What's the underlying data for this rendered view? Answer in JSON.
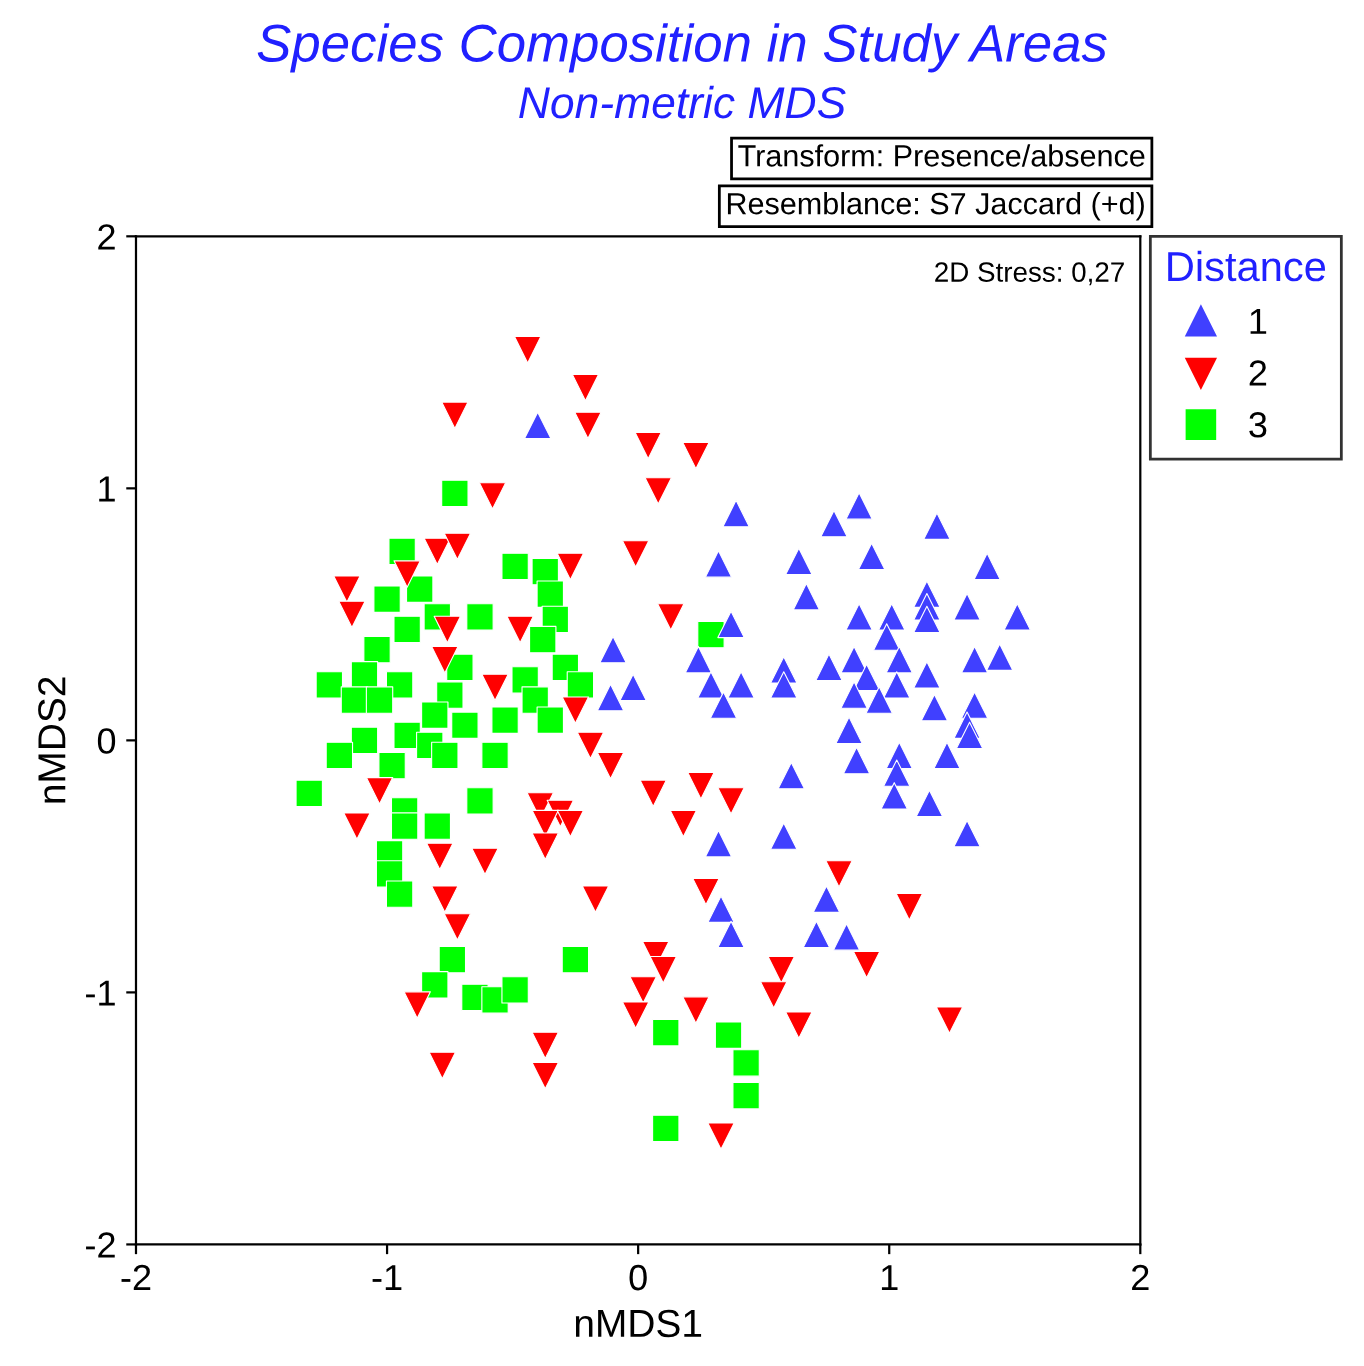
{
  "chart_data": {
    "type": "scatter",
    "title": "Species Composition in Study Areas",
    "subtitle": "Non-metric MDS",
    "xlabel": "nMDS1",
    "ylabel": "nMDS2",
    "legend_title": "Distance",
    "legend": "top right",
    "annotations": [
      "Transform: Presence/absence",
      "Resemblance: S7 Jaccard (+d)",
      "2D Stress: 0,27"
    ],
    "xlim": [
      -2,
      2
    ],
    "ylim": [
      -2,
      2
    ],
    "xticks": [
      -2,
      -1,
      0,
      1,
      2
    ],
    "yticks": [
      -2,
      -1,
      0,
      1,
      2
    ],
    "grid": false,
    "series": [
      {
        "name": "1",
        "color": "#4040ff",
        "marker": "triangle",
        "x": [
          -0.4,
          0.39,
          0.88,
          0.78,
          1.19,
          0.32,
          0.64,
          0.93,
          1.39,
          0.67,
          1.15,
          1.15,
          1.31,
          1.51,
          0.88,
          1.01,
          1.15,
          0.37,
          0.99,
          -0.1,
          0.24,
          0.58,
          0.76,
          0.86,
          1.04,
          1.34,
          1.44,
          -0.02,
          -0.11,
          0.29,
          0.41,
          0.58,
          0.91,
          1.15,
          0.86,
          1.03,
          0.96,
          0.34,
          1.18,
          1.34,
          1.31,
          0.84,
          1.32,
          0.87,
          1.04,
          1.23,
          0.61,
          1.03,
          1.02,
          1.16,
          1.31,
          0.32,
          0.58,
          0.75,
          0.33,
          0.37,
          0.71,
          0.83
        ],
        "values": [
          1.25,
          0.9,
          0.93,
          0.86,
          0.85,
          0.7,
          0.71,
          0.73,
          0.69,
          0.57,
          0.58,
          0.53,
          0.53,
          0.49,
          0.49,
          0.49,
          0.48,
          0.46,
          0.41,
          0.36,
          0.32,
          0.28,
          0.29,
          0.32,
          0.32,
          0.32,
          0.33,
          0.21,
          0.17,
          0.22,
          0.22,
          0.22,
          0.25,
          0.26,
          0.18,
          0.22,
          0.16,
          0.14,
          0.13,
          0.14,
          0.06,
          0.04,
          0.02,
          -0.08,
          -0.06,
          -0.06,
          -0.14,
          -0.13,
          -0.22,
          -0.25,
          -0.37,
          -0.41,
          -0.38,
          -0.63,
          -0.67,
          -0.77,
          -0.77,
          -0.78
        ]
      },
      {
        "name": "2",
        "color": "#ff0000",
        "marker": "triangle_down",
        "x": [
          -0.44,
          -0.21,
          -0.73,
          -0.2,
          -0.58,
          0.04,
          0.23,
          0.08,
          -0.01,
          0.13,
          -0.27,
          -0.25,
          -0.19,
          -0.11,
          0.06,
          0.25,
          0.37,
          -0.8,
          -0.72,
          -0.92,
          -1.16,
          -1.14,
          -0.47,
          -0.76,
          -0.77,
          -0.57,
          -1.03,
          -0.39,
          -0.31,
          -1.12,
          -0.37,
          -0.27,
          -0.37,
          -0.79,
          -0.61,
          -0.77,
          -0.17,
          -0.72,
          -0.88,
          -0.37,
          -0.78,
          -0.37,
          0.07,
          0.1,
          0.02,
          -0.01,
          0.18,
          0.27,
          0.8,
          1.08,
          0.23,
          0.57,
          0.54,
          0.64,
          0.91,
          1.24,
          0.33
        ],
        "values": [
          1.55,
          1.4,
          1.29,
          1.25,
          0.97,
          1.17,
          1.13,
          0.99,
          0.74,
          0.49,
          0.69,
          0.12,
          -0.02,
          -0.1,
          -0.21,
          -0.18,
          -0.24,
          0.75,
          0.77,
          0.66,
          0.6,
          0.5,
          0.44,
          0.44,
          0.32,
          0.21,
          -0.2,
          -0.26,
          -0.29,
          -0.34,
          -0.33,
          -0.33,
          -0.42,
          -0.46,
          -0.48,
          -0.63,
          -0.63,
          -0.74,
          -1.05,
          -1.21,
          -1.29,
          -1.33,
          -0.85,
          -0.91,
          -0.99,
          -1.09,
          -0.33,
          -0.6,
          -0.53,
          -0.66,
          -1.07,
          -0.91,
          -1.01,
          -1.13,
          -0.89,
          -1.11,
          -1.57
        ]
      },
      {
        "name": "3",
        "color": "#00ff00",
        "marker": "square",
        "x": [
          -0.73,
          -0.94,
          -0.49,
          -0.37,
          -0.87,
          -0.35,
          -1.0,
          -0.8,
          -0.63,
          -0.33,
          -0.92,
          -0.38,
          -1.04,
          -0.71,
          -0.29,
          -1.23,
          -1.09,
          -0.95,
          -0.45,
          -0.23,
          -1.13,
          -1.03,
          -0.75,
          -0.41,
          -0.81,
          -0.53,
          -0.35,
          -0.69,
          -1.09,
          -0.92,
          -0.83,
          -0.57,
          -1.19,
          -0.98,
          -0.77,
          -1.31,
          -0.63,
          -0.93,
          -0.93,
          -0.8,
          -0.99,
          -0.99,
          -0.95,
          -0.74,
          -0.81,
          -0.25,
          -0.65,
          -0.57,
          -0.49,
          0.11,
          0.36,
          0.43,
          0.43,
          0.11,
          0.29
        ],
        "values": [
          0.98,
          0.75,
          0.69,
          0.67,
          0.6,
          0.58,
          0.56,
          0.49,
          0.49,
          0.48,
          0.44,
          0.4,
          0.36,
          0.29,
          0.29,
          0.22,
          0.26,
          0.22,
          0.24,
          0.22,
          0.16,
          0.16,
          0.18,
          0.16,
          0.1,
          0.08,
          0.08,
          0.06,
          0.0,
          0.02,
          -0.02,
          -0.06,
          -0.06,
          -0.1,
          -0.06,
          -0.21,
          -0.24,
          -0.28,
          -0.34,
          -0.34,
          -0.45,
          -0.53,
          -0.61,
          -0.87,
          -0.97,
          -0.87,
          -1.02,
          -1.03,
          -0.99,
          -1.16,
          -1.17,
          -1.28,
          -1.41,
          -1.54,
          0.42
        ]
      }
    ]
  }
}
